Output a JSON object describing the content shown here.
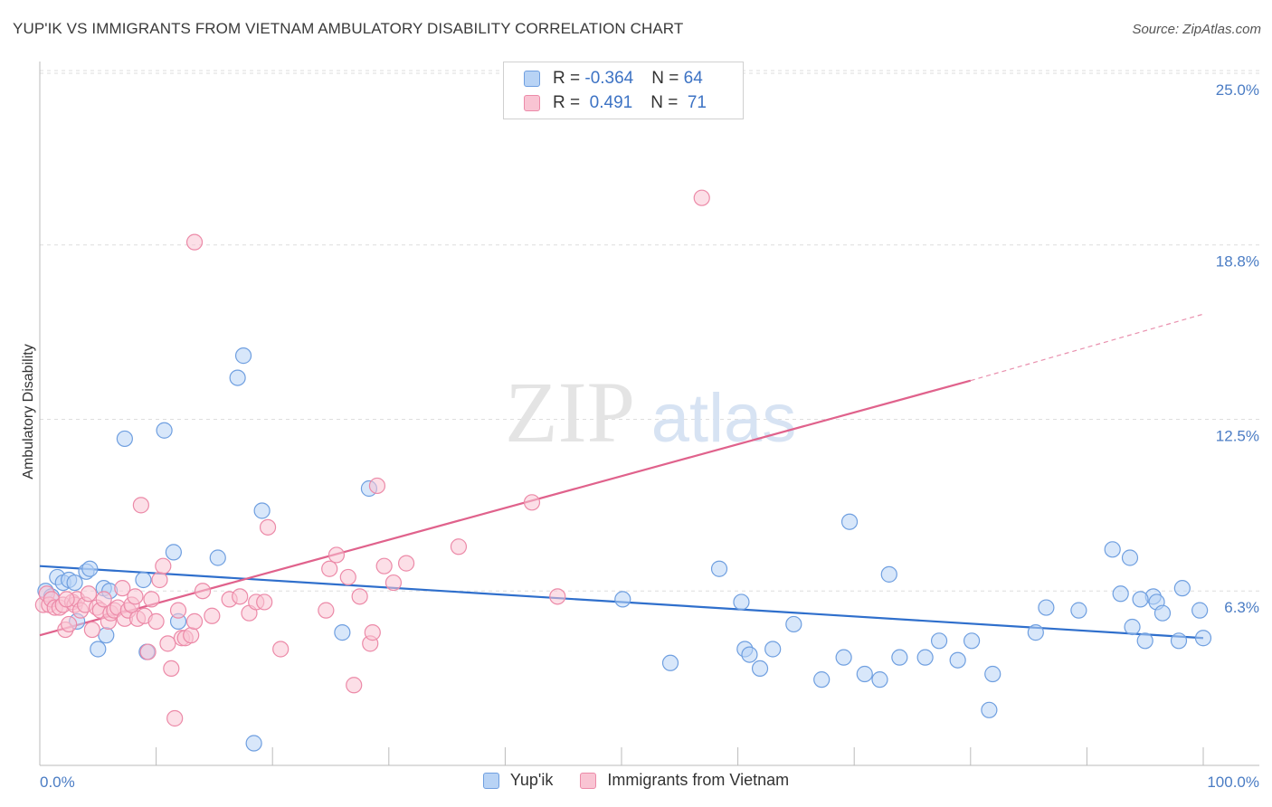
{
  "title": "YUP'IK VS IMMIGRANTS FROM VIETNAM AMBULATORY DISABILITY CORRELATION CHART",
  "source": "Source: ZipAtlas.com",
  "watermark": {
    "zip": "ZIP",
    "atlas": "atlas"
  },
  "legend": {
    "rows": [
      {
        "r_label": "R = ",
        "r_value": "-0.364",
        "n_label": "N = ",
        "n_value": "64",
        "fill": "#b8d3f5",
        "stroke": "#6f9fe0"
      },
      {
        "r_label": "R = ",
        "r_value": " 0.491",
        "n_label": "N = ",
        "n_value": " 71",
        "fill": "#f9c4d3",
        "stroke": "#ec8aa8"
      }
    ]
  },
  "bottom_legend": [
    {
      "label": "Yup'ik",
      "fill": "#b8d3f5",
      "stroke": "#6f9fe0"
    },
    {
      "label": "Immigrants from Vietnam",
      "fill": "#f9c4d3",
      "stroke": "#ec8aa8"
    }
  ],
  "chart_data": {
    "type": "scatter",
    "ylabel": "Ambulatory Disability",
    "x_tick_labels": [
      "0.0%",
      "100.0%"
    ],
    "y_tick_labels": [
      "6.3%",
      "12.5%",
      "18.8%",
      "25.0%"
    ],
    "y_ticks": [
      6.3,
      12.5,
      18.8,
      25.0
    ],
    "xlim": [
      0,
      100
    ],
    "ylim": [
      0,
      25.5
    ],
    "grid": true,
    "series": [
      {
        "name": "Yup'ik",
        "color": "#6f9fe0",
        "fill": "#b8d3f5",
        "line_color": "#2f6fcc",
        "trend": {
          "x": [
            0,
            100
          ],
          "y": [
            7.2,
            4.6
          ]
        },
        "points": [
          [
            0.5,
            6.3
          ],
          [
            1.0,
            6.1
          ],
          [
            1.5,
            6.8
          ],
          [
            2.0,
            6.6
          ],
          [
            2.5,
            6.7
          ],
          [
            3.0,
            6.6
          ],
          [
            3.2,
            5.2
          ],
          [
            4.0,
            7.0
          ],
          [
            4.3,
            7.1
          ],
          [
            5.0,
            4.2
          ],
          [
            5.5,
            6.4
          ],
          [
            5.7,
            4.7
          ],
          [
            6.0,
            6.3
          ],
          [
            7.3,
            11.8
          ],
          [
            8.9,
            6.7
          ],
          [
            9.2,
            4.1
          ],
          [
            10.7,
            12.1
          ],
          [
            11.5,
            7.7
          ],
          [
            11.9,
            5.2
          ],
          [
            15.3,
            7.5
          ],
          [
            17.0,
            14.0
          ],
          [
            17.5,
            14.8
          ],
          [
            18.4,
            0.8
          ],
          [
            19.1,
            9.2
          ],
          [
            26.0,
            4.8
          ],
          [
            28.3,
            10.0
          ],
          [
            50.1,
            6.0
          ],
          [
            54.2,
            3.7
          ],
          [
            58.4,
            7.1
          ],
          [
            60.3,
            5.9
          ],
          [
            60.6,
            4.2
          ],
          [
            61.0,
            4.0
          ],
          [
            61.9,
            3.5
          ],
          [
            63.0,
            4.2
          ],
          [
            64.8,
            5.1
          ],
          [
            67.2,
            3.1
          ],
          [
            69.1,
            3.9
          ],
          [
            69.6,
            8.8
          ],
          [
            70.9,
            3.3
          ],
          [
            72.2,
            3.1
          ],
          [
            73.0,
            6.9
          ],
          [
            73.9,
            3.9
          ],
          [
            76.1,
            3.9
          ],
          [
            77.3,
            4.5
          ],
          [
            78.9,
            3.8
          ],
          [
            80.1,
            4.5
          ],
          [
            81.6,
            2.0
          ],
          [
            81.9,
            3.3
          ],
          [
            85.6,
            4.8
          ],
          [
            86.5,
            5.7
          ],
          [
            89.3,
            5.6
          ],
          [
            92.2,
            7.8
          ],
          [
            92.9,
            6.2
          ],
          [
            93.7,
            7.5
          ],
          [
            93.9,
            5.0
          ],
          [
            95.0,
            4.5
          ],
          [
            95.7,
            6.1
          ],
          [
            96.0,
            5.9
          ],
          [
            96.5,
            5.5
          ],
          [
            97.9,
            4.5
          ],
          [
            98.2,
            6.4
          ],
          [
            99.7,
            5.6
          ],
          [
            100.0,
            4.6
          ],
          [
            94.6,
            6.0
          ]
        ]
      },
      {
        "name": "Immigrants from Vietnam",
        "color": "#ec8aa8",
        "fill": "#f9c4d3",
        "line_color": "#e0628c",
        "trend": {
          "x": [
            0,
            80
          ],
          "y": [
            4.7,
            13.9
          ]
        },
        "trend_dashed": {
          "x": [
            80,
            100
          ],
          "y": [
            13.9,
            16.3
          ]
        },
        "points": [
          [
            0.3,
            5.8
          ],
          [
            0.6,
            6.2
          ],
          [
            0.8,
            5.8
          ],
          [
            1.0,
            6.0
          ],
          [
            1.3,
            5.7
          ],
          [
            1.7,
            5.7
          ],
          [
            2.0,
            5.8
          ],
          [
            2.2,
            4.9
          ],
          [
            2.5,
            5.1
          ],
          [
            2.8,
            5.9
          ],
          [
            3.0,
            5.8
          ],
          [
            3.2,
            6.0
          ],
          [
            3.5,
            5.6
          ],
          [
            3.9,
            5.8
          ],
          [
            4.2,
            6.2
          ],
          [
            4.5,
            4.9
          ],
          [
            4.9,
            5.7
          ],
          [
            5.2,
            5.6
          ],
          [
            5.5,
            6.0
          ],
          [
            5.9,
            5.2
          ],
          [
            6.1,
            5.5
          ],
          [
            6.4,
            5.6
          ],
          [
            6.7,
            5.7
          ],
          [
            7.1,
            6.4
          ],
          [
            7.3,
            5.3
          ],
          [
            7.6,
            5.6
          ],
          [
            7.9,
            5.8
          ],
          [
            8.2,
            6.1
          ],
          [
            8.4,
            5.3
          ],
          [
            8.7,
            9.4
          ],
          [
            9.0,
            5.4
          ],
          [
            9.3,
            4.1
          ],
          [
            9.6,
            6.0
          ],
          [
            10.0,
            5.2
          ],
          [
            10.3,
            6.7
          ],
          [
            10.6,
            7.2
          ],
          [
            11.0,
            4.4
          ],
          [
            11.3,
            3.5
          ],
          [
            11.6,
            1.7
          ],
          [
            11.9,
            5.6
          ],
          [
            12.2,
            4.6
          ],
          [
            12.5,
            4.6
          ],
          [
            13.0,
            4.7
          ],
          [
            13.3,
            5.2
          ],
          [
            13.3,
            18.9
          ],
          [
            14.0,
            6.3
          ],
          [
            14.8,
            5.4
          ],
          [
            16.3,
            6.0
          ],
          [
            17.2,
            6.1
          ],
          [
            18.0,
            5.5
          ],
          [
            18.6,
            5.9
          ],
          [
            19.3,
            5.9
          ],
          [
            19.6,
            8.6
          ],
          [
            20.7,
            4.2
          ],
          [
            24.6,
            5.6
          ],
          [
            24.9,
            7.1
          ],
          [
            25.5,
            7.6
          ],
          [
            26.5,
            6.8
          ],
          [
            27.0,
            2.9
          ],
          [
            27.5,
            6.1
          ],
          [
            28.4,
            4.4
          ],
          [
            28.6,
            4.8
          ],
          [
            29.0,
            10.1
          ],
          [
            29.6,
            7.2
          ],
          [
            30.4,
            6.6
          ],
          [
            31.5,
            7.3
          ],
          [
            36.0,
            7.9
          ],
          [
            42.3,
            9.5
          ],
          [
            44.5,
            6.1
          ],
          [
            56.9,
            20.5
          ],
          [
            2.3,
            6.0
          ]
        ]
      }
    ]
  }
}
